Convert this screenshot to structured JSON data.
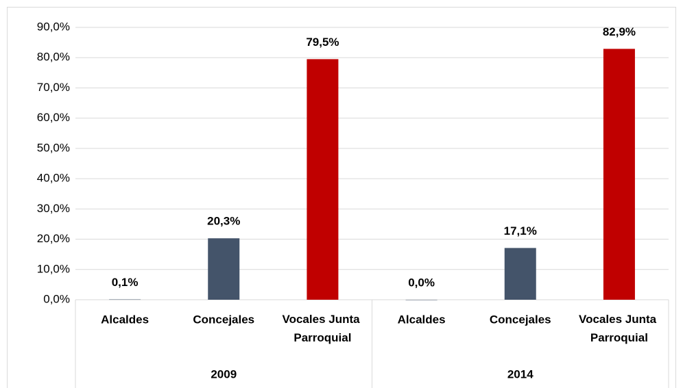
{
  "chart_data": {
    "type": "bar",
    "categories": [
      "Alcaldes",
      "Concejales",
      "Vocales Junta Parroquial",
      "Alcaldes",
      "Concejales",
      "Vocales Junta Parroquial"
    ],
    "group_labels": [
      "2009",
      "2014"
    ],
    "values": [
      0.1,
      20.3,
      79.5,
      0.0,
      17.1,
      82.9
    ],
    "value_labels": [
      "0,1%",
      "20,3%",
      "79,5%",
      "0,0%",
      "17,1%",
      "82,9%"
    ],
    "colors": [
      "#44546a",
      "#44546a",
      "#c00000",
      "#44546a",
      "#44546a",
      "#c00000"
    ],
    "ylim": [
      0,
      90
    ],
    "yticks": [
      {
        "value": 0,
        "label": "0,0%"
      },
      {
        "value": 10,
        "label": "10,0%"
      },
      {
        "value": 20,
        "label": "20,0%"
      },
      {
        "value": 30,
        "label": "30,0%"
      },
      {
        "value": 40,
        "label": "40,0%"
      },
      {
        "value": 50,
        "label": "50,0%"
      },
      {
        "value": 60,
        "label": "60,0%"
      },
      {
        "value": 70,
        "label": "70,0%"
      },
      {
        "value": 80,
        "label": "80,0%"
      },
      {
        "value": 90,
        "label": "90,0%"
      }
    ],
    "grid": true
  }
}
